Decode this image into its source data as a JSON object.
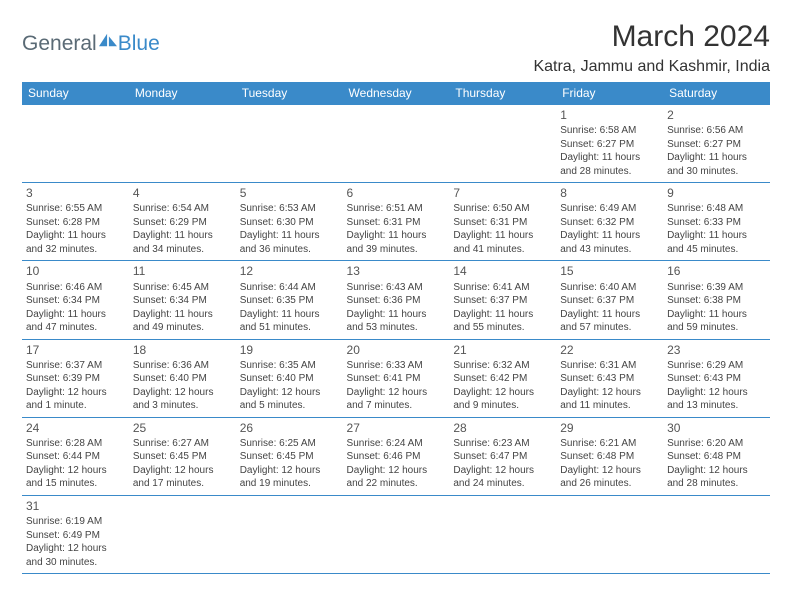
{
  "brand": {
    "part1": "General",
    "part2": "Blue",
    "logo_fill": "#3a8ac9"
  },
  "title": "March 2024",
  "location": "Katra, Jammu and Kashmir, India",
  "theme": {
    "header_bg": "#3a8ac9",
    "header_fg": "#ffffff",
    "border": "#3a8ac9"
  },
  "day_headers": [
    "Sunday",
    "Monday",
    "Tuesday",
    "Wednesday",
    "Thursday",
    "Friday",
    "Saturday"
  ],
  "weeks": [
    [
      null,
      null,
      null,
      null,
      null,
      {
        "n": "1",
        "sr": "6:58 AM",
        "ss": "6:27 PM",
        "dl": "11 hours and 28 minutes."
      },
      {
        "n": "2",
        "sr": "6:56 AM",
        "ss": "6:27 PM",
        "dl": "11 hours and 30 minutes."
      }
    ],
    [
      {
        "n": "3",
        "sr": "6:55 AM",
        "ss": "6:28 PM",
        "dl": "11 hours and 32 minutes."
      },
      {
        "n": "4",
        "sr": "6:54 AM",
        "ss": "6:29 PM",
        "dl": "11 hours and 34 minutes."
      },
      {
        "n": "5",
        "sr": "6:53 AM",
        "ss": "6:30 PM",
        "dl": "11 hours and 36 minutes."
      },
      {
        "n": "6",
        "sr": "6:51 AM",
        "ss": "6:31 PM",
        "dl": "11 hours and 39 minutes."
      },
      {
        "n": "7",
        "sr": "6:50 AM",
        "ss": "6:31 PM",
        "dl": "11 hours and 41 minutes."
      },
      {
        "n": "8",
        "sr": "6:49 AM",
        "ss": "6:32 PM",
        "dl": "11 hours and 43 minutes."
      },
      {
        "n": "9",
        "sr": "6:48 AM",
        "ss": "6:33 PM",
        "dl": "11 hours and 45 minutes."
      }
    ],
    [
      {
        "n": "10",
        "sr": "6:46 AM",
        "ss": "6:34 PM",
        "dl": "11 hours and 47 minutes."
      },
      {
        "n": "11",
        "sr": "6:45 AM",
        "ss": "6:34 PM",
        "dl": "11 hours and 49 minutes."
      },
      {
        "n": "12",
        "sr": "6:44 AM",
        "ss": "6:35 PM",
        "dl": "11 hours and 51 minutes."
      },
      {
        "n": "13",
        "sr": "6:43 AM",
        "ss": "6:36 PM",
        "dl": "11 hours and 53 minutes."
      },
      {
        "n": "14",
        "sr": "6:41 AM",
        "ss": "6:37 PM",
        "dl": "11 hours and 55 minutes."
      },
      {
        "n": "15",
        "sr": "6:40 AM",
        "ss": "6:37 PM",
        "dl": "11 hours and 57 minutes."
      },
      {
        "n": "16",
        "sr": "6:39 AM",
        "ss": "6:38 PM",
        "dl": "11 hours and 59 minutes."
      }
    ],
    [
      {
        "n": "17",
        "sr": "6:37 AM",
        "ss": "6:39 PM",
        "dl": "12 hours and 1 minute."
      },
      {
        "n": "18",
        "sr": "6:36 AM",
        "ss": "6:40 PM",
        "dl": "12 hours and 3 minutes."
      },
      {
        "n": "19",
        "sr": "6:35 AM",
        "ss": "6:40 PM",
        "dl": "12 hours and 5 minutes."
      },
      {
        "n": "20",
        "sr": "6:33 AM",
        "ss": "6:41 PM",
        "dl": "12 hours and 7 minutes."
      },
      {
        "n": "21",
        "sr": "6:32 AM",
        "ss": "6:42 PM",
        "dl": "12 hours and 9 minutes."
      },
      {
        "n": "22",
        "sr": "6:31 AM",
        "ss": "6:43 PM",
        "dl": "12 hours and 11 minutes."
      },
      {
        "n": "23",
        "sr": "6:29 AM",
        "ss": "6:43 PM",
        "dl": "12 hours and 13 minutes."
      }
    ],
    [
      {
        "n": "24",
        "sr": "6:28 AM",
        "ss": "6:44 PM",
        "dl": "12 hours and 15 minutes."
      },
      {
        "n": "25",
        "sr": "6:27 AM",
        "ss": "6:45 PM",
        "dl": "12 hours and 17 minutes."
      },
      {
        "n": "26",
        "sr": "6:25 AM",
        "ss": "6:45 PM",
        "dl": "12 hours and 19 minutes."
      },
      {
        "n": "27",
        "sr": "6:24 AM",
        "ss": "6:46 PM",
        "dl": "12 hours and 22 minutes."
      },
      {
        "n": "28",
        "sr": "6:23 AM",
        "ss": "6:47 PM",
        "dl": "12 hours and 24 minutes."
      },
      {
        "n": "29",
        "sr": "6:21 AM",
        "ss": "6:48 PM",
        "dl": "12 hours and 26 minutes."
      },
      {
        "n": "30",
        "sr": "6:20 AM",
        "ss": "6:48 PM",
        "dl": "12 hours and 28 minutes."
      }
    ],
    [
      {
        "n": "31",
        "sr": "6:19 AM",
        "ss": "6:49 PM",
        "dl": "12 hours and 30 minutes."
      },
      null,
      null,
      null,
      null,
      null,
      null
    ]
  ],
  "labels": {
    "sunrise": "Sunrise:",
    "sunset": "Sunset:",
    "daylight": "Daylight:"
  }
}
